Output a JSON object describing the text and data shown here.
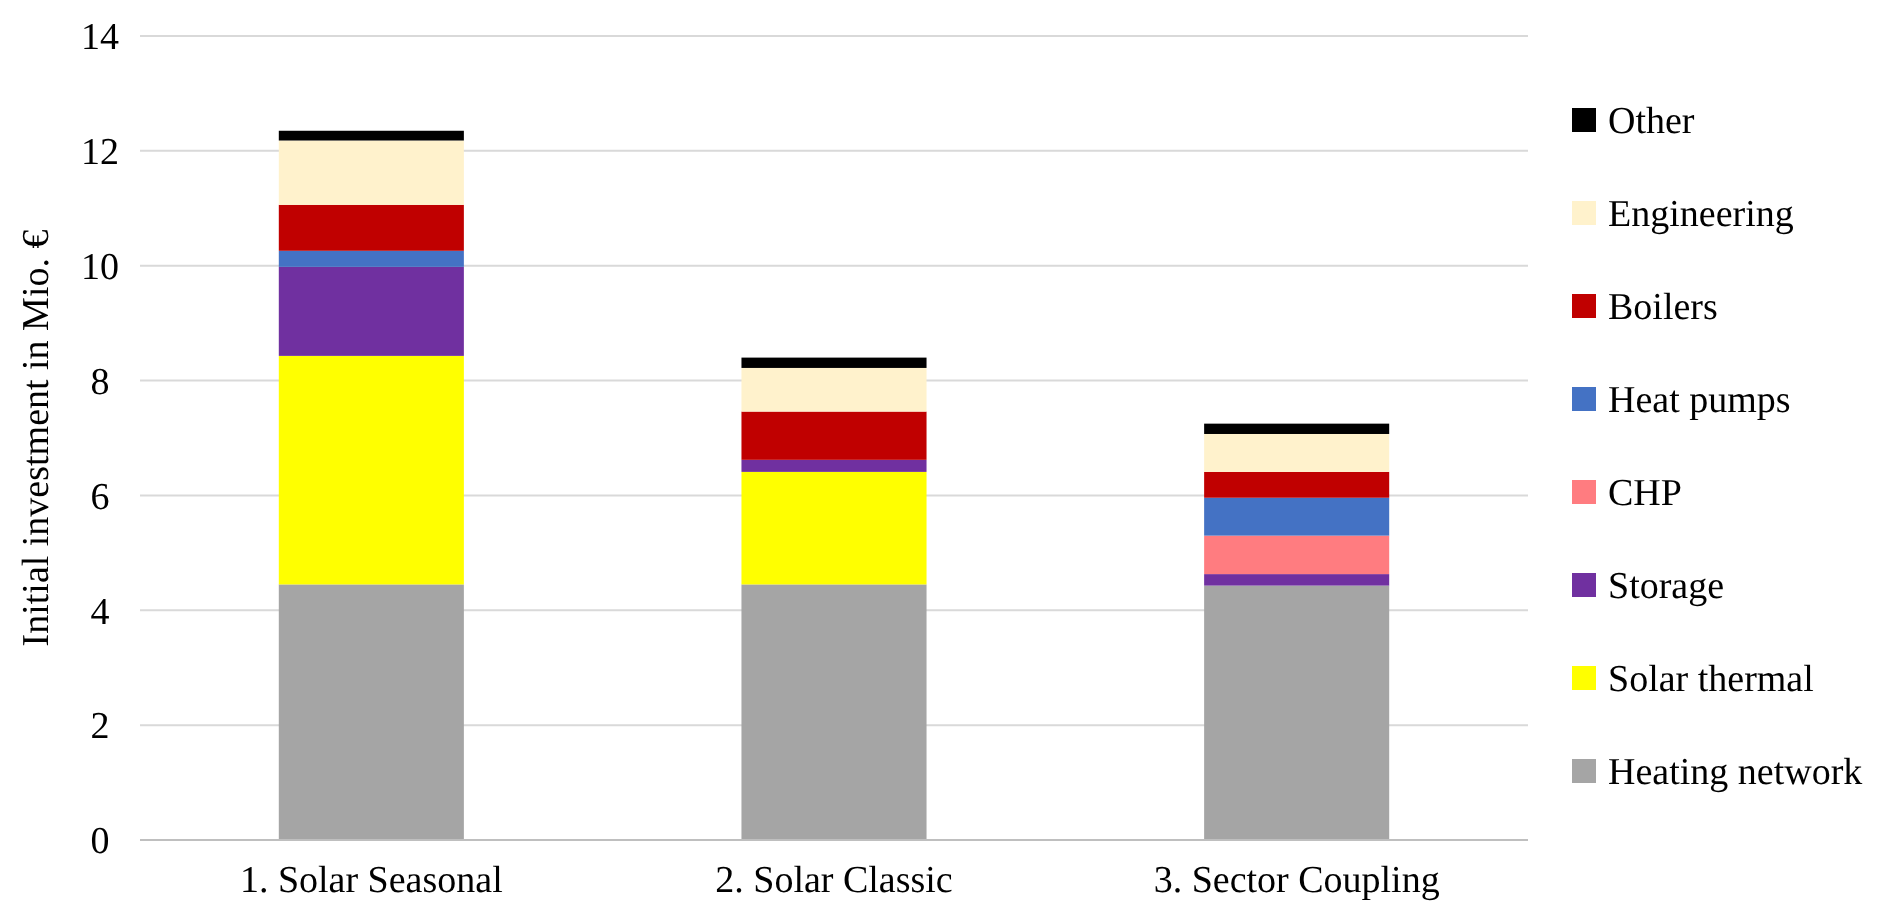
{
  "chart_data": {
    "type": "bar",
    "stacked": true,
    "ylabel": "Initial investment in Mio. €",
    "categories": [
      "1. Solar Seasonal",
      "2. Solar Classic",
      "3. Sector Coupling"
    ],
    "ylim": [
      0,
      14
    ],
    "yticks": [
      0,
      2,
      4,
      6,
      8,
      10,
      12,
      14
    ],
    "grid": "y",
    "legend": "right",
    "series": [
      {
        "name": "Heating network",
        "color": "#a5a5a5",
        "values": [
          4.45,
          4.45,
          4.43
        ]
      },
      {
        "name": "Solar thermal",
        "color": "#ffff00",
        "values": [
          3.98,
          1.96,
          0
        ]
      },
      {
        "name": "Storage",
        "color": "#7030a0",
        "values": [
          1.55,
          0.21,
          0.2
        ]
      },
      {
        "name": "CHP",
        "color": "#ff7c80",
        "values": [
          0,
          0,
          0.67
        ]
      },
      {
        "name": "Heat pumps",
        "color": "#4472c4",
        "values": [
          0.28,
          0,
          0.66
        ]
      },
      {
        "name": "Boilers",
        "color": "#c00000",
        "values": [
          0.8,
          0.84,
          0.45
        ]
      },
      {
        "name": "Engineering",
        "color": "#fff2cc",
        "values": [
          1.12,
          0.76,
          0.66
        ]
      },
      {
        "name": "Other",
        "color": "#000000",
        "values": [
          0.17,
          0.18,
          0.18
        ]
      }
    ]
  }
}
